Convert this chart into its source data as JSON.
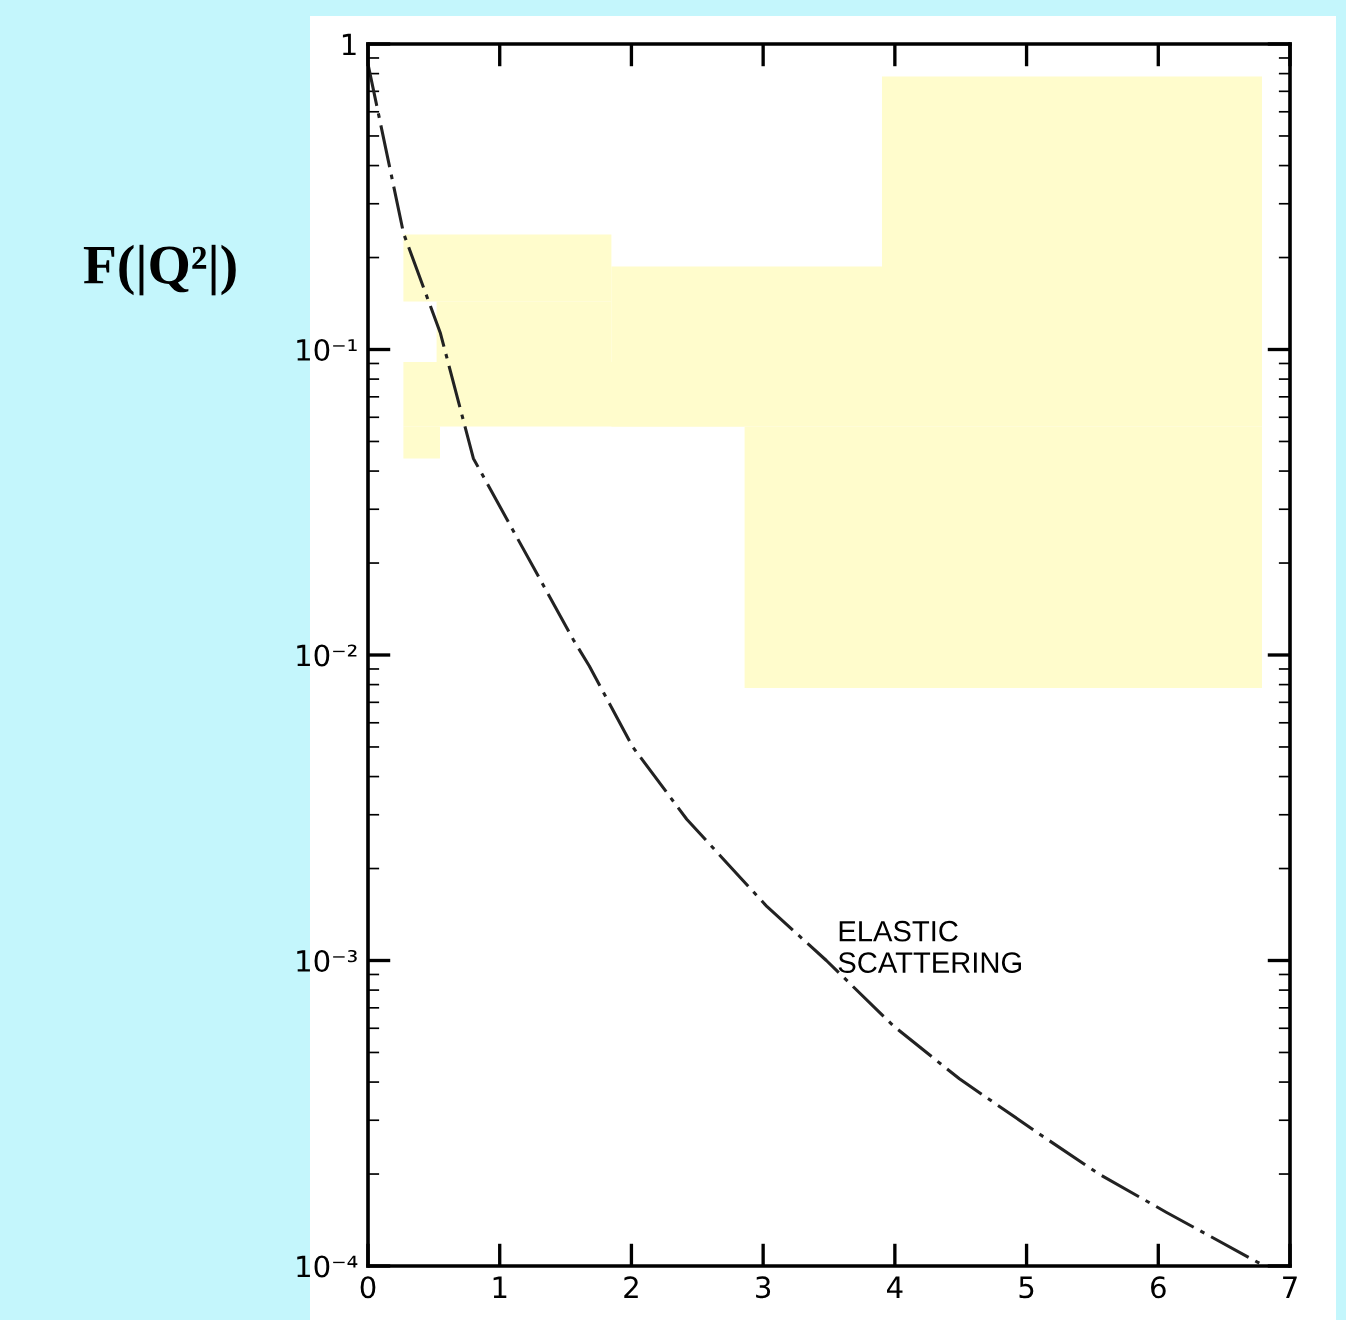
{
  "chart_data": {
    "type": "line",
    "ylabel": "F(|Q²|)",
    "log": "y",
    "x": [
      0.0,
      0.27,
      0.55,
      0.8,
      1.56,
      1.68,
      2.01,
      2.42,
      3.03,
      3.48,
      3.99,
      4.49,
      5.1,
      5.55,
      6.06,
      6.77
    ],
    "series": [
      {
        "color": "#222222",
        "values": [
          0.86,
          0.24,
          0.113,
          0.044,
          0.0112,
          0.0092,
          0.005,
          0.0029,
          0.0015,
          0.001,
          0.00061,
          0.00041,
          0.00027,
          0.0002,
          0.00015,
          0.000102
        ]
      }
    ],
    "line_style": "dashed",
    "xlim": [
      0,
      7
    ],
    "xticks": [
      0,
      1,
      2,
      3,
      4,
      5,
      6,
      7
    ],
    "ylim": [
      0.0001,
      1
    ],
    "yticks": [
      {
        "value": 0.0001,
        "label": "10⁻⁴"
      },
      {
        "value": 0.001,
        "label": "10⁻³"
      },
      {
        "value": 0.01,
        "label": "10⁻²"
      },
      {
        "value": 0.1,
        "label": "10⁻¹"
      },
      {
        "value": 1,
        "label": "1"
      }
    ],
    "annotations": [
      {
        "text": "ELASTIC\nSCATTERING",
        "x": 3.5,
        "y": 0.001
      }
    ],
    "grid": false
  }
}
